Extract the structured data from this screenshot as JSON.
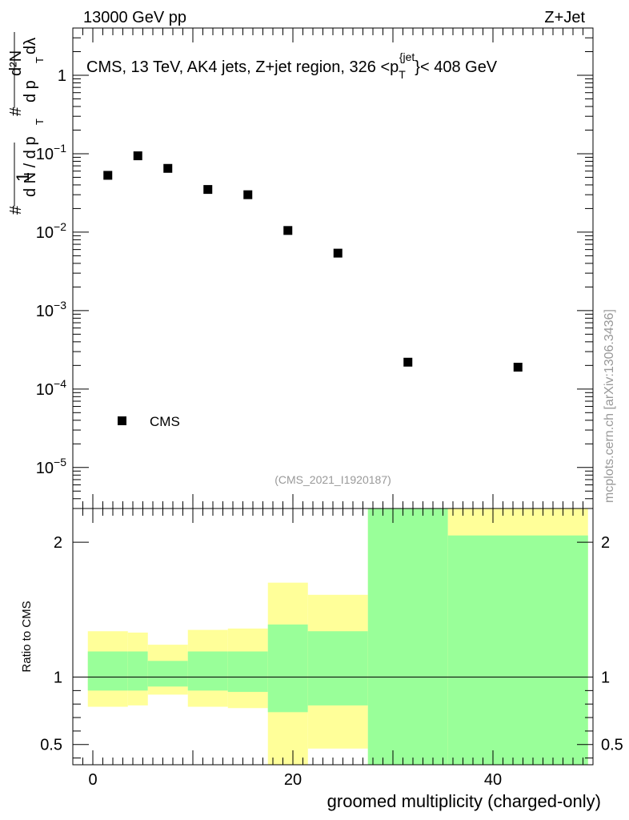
{
  "header": {
    "left": "13000 GeV pp",
    "right": "Z+Jet"
  },
  "watermark": "mcplots.cern.ch [arXiv:1306.3436]",
  "colors": {
    "band_outer": "#ffff99",
    "band_inner": "#99ff99",
    "marker": "#000000"
  },
  "chart_data": [
    {
      "type": "scatter",
      "title_parts": {
        "prefix": "CMS, 13 TeV, AK4 jets, Z+jet region, 326 <p",
        "sub": "T",
        "sup": "{jet",
        "brace": "}",
        "suffix": "< 408 GeV"
      },
      "ylabel": "1/(dN/dpT) d²N/(dpT dλ)",
      "ylabel_parts": {
        "one": "1",
        "hash": "#",
        "dN": "d N / d p",
        "T": "T",
        "d2N": "d²N",
        "dpT": "d p",
        "dlambda": "dλ"
      },
      "yscale": "log",
      "ylim": [
        3e-06,
        4
      ],
      "xlim": [
        -2,
        50
      ],
      "ytick_labels": [
        {
          "value": 1,
          "mant": "1",
          "exp": ""
        },
        {
          "value": 0.1,
          "mant": "10",
          "exp": "−1"
        },
        {
          "value": 0.01,
          "mant": "10",
          "exp": "−2"
        },
        {
          "value": 0.001,
          "mant": "10",
          "exp": "−3"
        },
        {
          "value": 0.0001,
          "mant": "10",
          "exp": "−4"
        },
        {
          "value": 1e-05,
          "mant": "10",
          "exp": "−5"
        }
      ],
      "series": [
        {
          "name": "CMS",
          "x": [
            1.5,
            4.5,
            7.5,
            11.5,
            15.5,
            19.5,
            24.5,
            31.5,
            42.5
          ],
          "y": [
            0.053,
            0.094,
            0.065,
            0.035,
            0.03,
            0.0105,
            0.0054,
            0.00022,
            0.00019
          ]
        }
      ],
      "legend": {
        "label": "CMS",
        "placement": "bottom-left"
      },
      "analysis_label": "(CMS_2021_I1920187)"
    },
    {
      "type": "area",
      "ylabel": "Ratio to CMS",
      "xlabel": "groomed multiplicity (charged-only)",
      "ylim": [
        0.35,
        2.25
      ],
      "xlim": [
        -2,
        50
      ],
      "xticks": [
        0,
        20,
        40
      ],
      "xtick_labels": [
        "0",
        "20",
        "40"
      ],
      "yticks": [
        0.5,
        1,
        2
      ],
      "ytick_labels": [
        "0.5",
        "1",
        "2"
      ],
      "reference_line": 1,
      "bins": [
        {
          "x0": -0.5,
          "x1": 3.5,
          "outer": [
            0.78,
            1.34
          ],
          "inner": [
            0.9,
            1.19
          ]
        },
        {
          "x0": 3.5,
          "x1": 5.5,
          "outer": [
            0.79,
            1.33
          ],
          "inner": [
            0.9,
            1.19
          ]
        },
        {
          "x0": 5.5,
          "x1": 9.5,
          "outer": [
            0.87,
            1.24
          ],
          "inner": [
            0.93,
            1.12
          ]
        },
        {
          "x0": 9.5,
          "x1": 13.5,
          "outer": [
            0.78,
            1.35
          ],
          "inner": [
            0.9,
            1.19
          ]
        },
        {
          "x0": 13.5,
          "x1": 17.5,
          "outer": [
            0.77,
            1.36
          ],
          "inner": [
            0.89,
            1.19
          ]
        },
        {
          "x0": 17.5,
          "x1": 21.5,
          "outer": [
            0.3,
            1.7
          ],
          "inner": [
            0.74,
            1.39
          ]
        },
        {
          "x0": 21.5,
          "x1": 27.5,
          "outer": [
            0.47,
            1.61
          ],
          "inner": [
            0.79,
            1.34
          ]
        },
        {
          "x0": 27.5,
          "x1": 35.5,
          "outer": [
            0.3,
            2.6
          ],
          "inner": [
            0.3,
            2.6
          ]
        },
        {
          "x0": 35.5,
          "x1": 49.5,
          "outer": [
            0.3,
            2.25
          ],
          "inner": [
            0.3,
            2.05
          ]
        }
      ]
    }
  ]
}
